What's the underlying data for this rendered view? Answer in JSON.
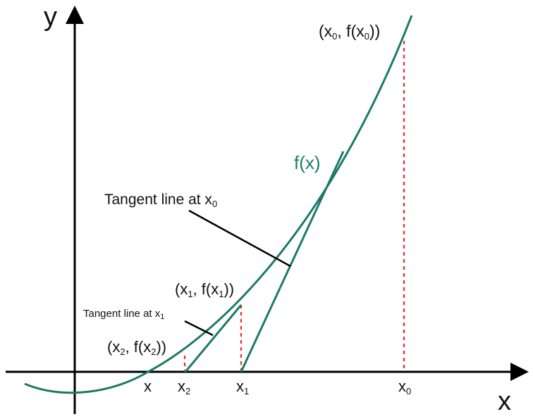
{
  "axes": {
    "x_label": "x",
    "y_label": "y"
  },
  "curve": {
    "label": "f(x)",
    "color": "#1b7a68"
  },
  "points": {
    "p0": {
      "base": "(x",
      "sub": "0",
      "mid": ", f(x",
      "sub2": "0",
      "end": "))"
    },
    "p1": {
      "base": "(x",
      "sub": "1",
      "mid": ", f(x",
      "sub2": "1",
      "end": "))"
    },
    "p2": {
      "base": "(x",
      "sub": "2",
      "mid": ", f(x",
      "sub2": "2",
      "end": "))"
    }
  },
  "annotations": {
    "tangent_x0": {
      "text": "Tangent line at x",
      "sub": "0"
    },
    "tangent_x1": {
      "text": "Tangent line at x",
      "sub": "1"
    }
  },
  "ticks": {
    "root": {
      "base": "x",
      "sub": ""
    },
    "x2": {
      "base": "x",
      "sub": "2"
    },
    "x1": {
      "base": "x",
      "sub": "1"
    },
    "x0": {
      "base": "x",
      "sub": "0"
    }
  },
  "colors": {
    "curve": "#1b7a68",
    "axis": "#000000",
    "dashed": "#e0302a"
  }
}
